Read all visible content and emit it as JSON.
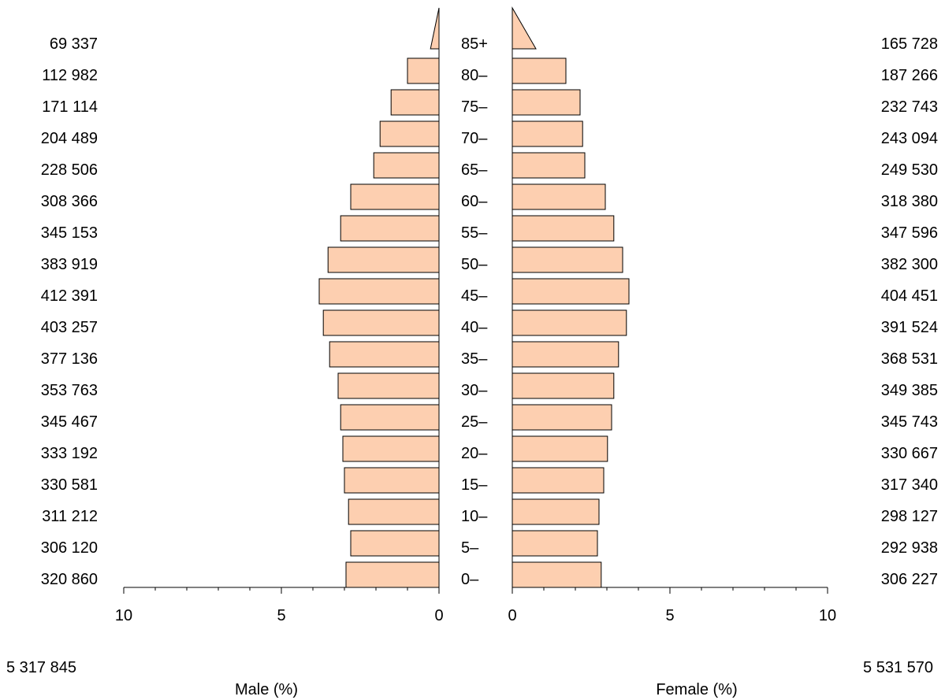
{
  "chart_data": {
    "type": "bar",
    "orientation": "horizontal",
    "layout": "population-pyramid",
    "categories": [
      "0–",
      "5–",
      "10–",
      "15–",
      "20–",
      "25–",
      "30–",
      "35–",
      "40–",
      "45–",
      "50–",
      "55–",
      "60–",
      "65–",
      "70–",
      "75–",
      "80–",
      "85+"
    ],
    "series": [
      {
        "name": "Male (%)",
        "side": "left",
        "values": [
          2.95,
          2.8,
          2.87,
          3.0,
          3.05,
          3.12,
          3.2,
          3.47,
          3.67,
          3.8,
          3.52,
          3.12,
          2.8,
          2.07,
          1.87,
          1.52,
          1.0,
          0.27
        ],
        "counts": [
          "320 860",
          "306 120",
          "311 212",
          "330 581",
          "333 192",
          "345 467",
          "353 763",
          "377 136",
          "403 257",
          "412 391",
          "383 919",
          "345 153",
          "308 366",
          "228 506",
          "204 489",
          "171 114",
          "112 982",
          "69 337"
        ],
        "total": "5 317 845",
        "color": "#fdcfb0"
      },
      {
        "name": "Female (%)",
        "side": "right",
        "values": [
          2.82,
          2.7,
          2.75,
          2.9,
          3.02,
          3.15,
          3.22,
          3.37,
          3.62,
          3.7,
          3.5,
          3.22,
          2.95,
          2.3,
          2.23,
          2.15,
          1.7,
          0.75
        ],
        "counts": [
          "306 227",
          "292 938",
          "298 127",
          "317 340",
          "330 667",
          "345 743",
          "349 385",
          "368 531",
          "391 524",
          "404 451",
          "382 300",
          "347 596",
          "318 380",
          "249 530",
          "243 094",
          "232 743",
          "187 266",
          "165 728"
        ],
        "total": "5 531 570",
        "color": "#fdcfb0"
      }
    ],
    "xlim": [
      0,
      10
    ],
    "x_ticks": [
      "10",
      "5",
      "0"
    ],
    "x_ticks_right": [
      "0",
      "5",
      "10"
    ],
    "xlabel_left": "Male (%)",
    "xlabel_right": "Female (%)",
    "grid": false,
    "legend": "none"
  }
}
